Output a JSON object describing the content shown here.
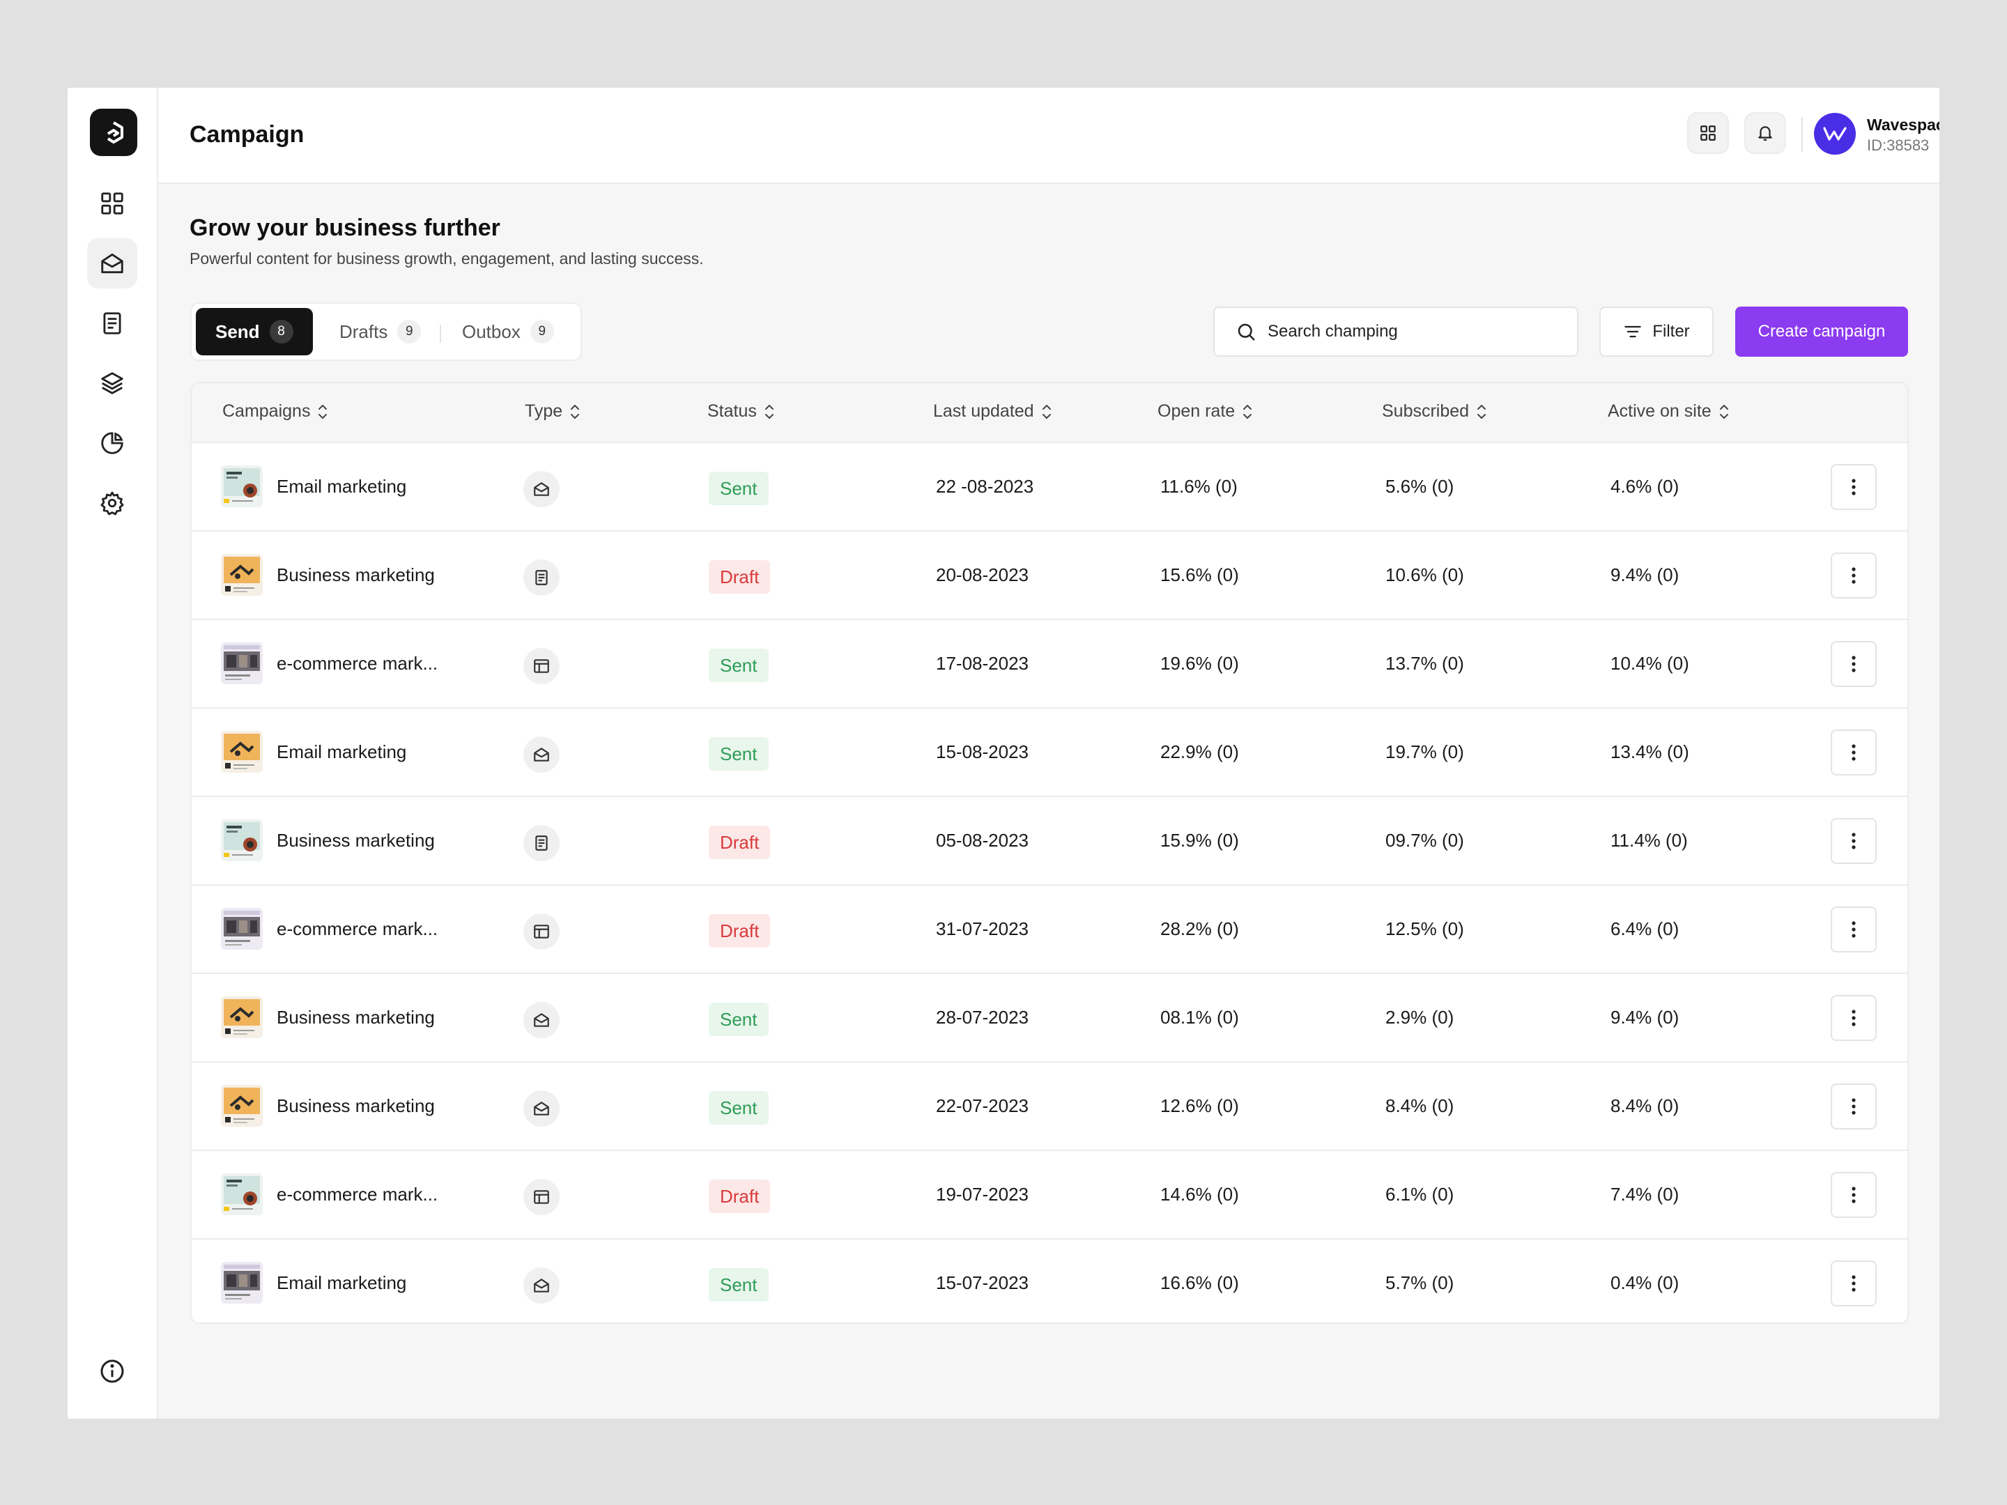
{
  "header": {
    "title": "Campaign"
  },
  "user": {
    "name": "Wavespace",
    "id": "ID:38583"
  },
  "content": {
    "title": "Grow your business further",
    "subtitle": "Powerful content for business growth, engagement, and lasting success."
  },
  "tabs": [
    {
      "label": "Send",
      "count": "8"
    },
    {
      "label": "Drafts",
      "count": "9"
    },
    {
      "label": "Outbox",
      "count": "9"
    }
  ],
  "search": {
    "placeholder": "Search champing"
  },
  "filter_label": "Filter",
  "create_label": "Create campaign",
  "columns": [
    "Campaigns",
    "Type",
    "Status",
    "Last updated",
    "Open rate",
    "Subscribed",
    "Active on site"
  ],
  "rows": [
    {
      "name": "Email marketing",
      "type": "mail",
      "status": "Sent",
      "updated": "22 -08-2023",
      "open": "11.6% (0)",
      "subscribed": "5.6% (0)",
      "active": "4.6% (0)",
      "thumb": "teal"
    },
    {
      "name": "Business marketing",
      "type": "doc",
      "status": "Draft",
      "updated": "20-08-2023",
      "open": "15.6% (0)",
      "subscribed": "10.6% (0)",
      "active": "9.4% (0)",
      "thumb": "orange"
    },
    {
      "name": "e-commerce mark...",
      "type": "layout",
      "status": "Sent",
      "updated": "17-08-2023",
      "open": "19.6% (0)",
      "subscribed": "13.7% (0)",
      "active": "10.4% (0)",
      "thumb": "purple"
    },
    {
      "name": "Email marketing",
      "type": "mail",
      "status": "Sent",
      "updated": "15-08-2023",
      "open": "22.9% (0)",
      "subscribed": "19.7% (0)",
      "active": "13.4% (0)",
      "thumb": "orange"
    },
    {
      "name": "Business marketing",
      "type": "doc",
      "status": "Draft",
      "updated": "05-08-2023",
      "open": "15.9% (0)",
      "subscribed": "09.7% (0)",
      "active": "11.4% (0)",
      "thumb": "teal"
    },
    {
      "name": "e-commerce mark...",
      "type": "layout",
      "status": "Draft",
      "updated": "31-07-2023",
      "open": "28.2% (0)",
      "subscribed": "12.5% (0)",
      "active": "6.4% (0)",
      "thumb": "purple"
    },
    {
      "name": "Business marketing",
      "type": "mail",
      "status": "Sent",
      "updated": "28-07-2023",
      "open": "08.1% (0)",
      "subscribed": "2.9% (0)",
      "active": "9.4% (0)",
      "thumb": "orange"
    },
    {
      "name": "Business marketing",
      "type": "mail",
      "status": "Sent",
      "updated": "22-07-2023",
      "open": "12.6% (0)",
      "subscribed": "8.4% (0)",
      "active": "8.4% (0)",
      "thumb": "orange"
    },
    {
      "name": "e-commerce mark...",
      "type": "layout",
      "status": "Draft",
      "updated": "19-07-2023",
      "open": "14.6% (0)",
      "subscribed": "6.1% (0)",
      "active": "7.4% (0)",
      "thumb": "teal"
    },
    {
      "name": "Email marketing",
      "type": "mail",
      "status": "Sent",
      "updated": "15-07-2023",
      "open": "16.6% (0)",
      "subscribed": "5.7% (0)",
      "active": "0.4% (0)",
      "thumb": "purple"
    }
  ],
  "colors": {
    "accent": "#8b3bf0",
    "avatar": "#4a2ee6",
    "sent": "#2f9c57",
    "draft": "#d93a3a"
  },
  "icons": {
    "sidebar": [
      "grid-icon",
      "mail-open-icon",
      "document-icon",
      "layers-icon",
      "pie-chart-icon",
      "gear-icon"
    ],
    "bottom": "info-icon"
  }
}
